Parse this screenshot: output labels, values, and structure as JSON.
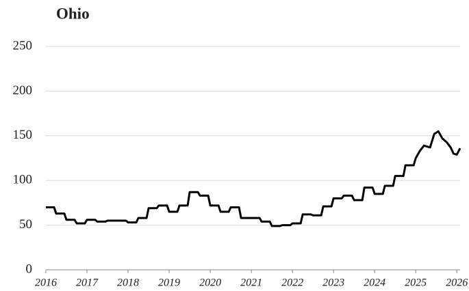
{
  "chart_data": {
    "type": "line",
    "title": "Ohio",
    "x": [
      2016,
      2016.2,
      2016.25,
      2016.45,
      2016.5,
      2016.7,
      2016.75,
      2016.95,
      2017,
      2017.2,
      2017.25,
      2017.45,
      2017.5,
      2017.95,
      2018,
      2018.2,
      2018.25,
      2018.45,
      2018.5,
      2018.7,
      2018.75,
      2018.95,
      2019,
      2019.2,
      2019.25,
      2019.45,
      2019.5,
      2019.7,
      2019.75,
      2019.95,
      2020,
      2020.2,
      2020.25,
      2020.45,
      2020.5,
      2020.7,
      2020.75,
      2021.2,
      2021.25,
      2021.45,
      2021.5,
      2021.7,
      2021.75,
      2021.95,
      2022,
      2022.2,
      2022.25,
      2022.45,
      2022.5,
      2022.7,
      2022.75,
      2022.95,
      2023,
      2023.2,
      2023.25,
      2023.45,
      2023.5,
      2023.7,
      2023.75,
      2023.95,
      2024,
      2024.2,
      2024.25,
      2024.45,
      2024.5,
      2024.7,
      2024.75,
      2024.95,
      2025,
      2025.1,
      2025.2,
      2025.35,
      2025.45,
      2025.55,
      2025.65,
      2025.75,
      2025.85,
      2025.92,
      2026,
      2026.08
    ],
    "series": [
      {
        "color": "#000000",
        "values": [
          70,
          70,
          63,
          63,
          56,
          56,
          52,
          52,
          56,
          56,
          54,
          54,
          55,
          55,
          53,
          53,
          58,
          58,
          69,
          69,
          72,
          72,
          65,
          65,
          72,
          72,
          87,
          87,
          83,
          83,
          72,
          72,
          65,
          65,
          70,
          70,
          58,
          58,
          54,
          54,
          49,
          49,
          50,
          50,
          52,
          52,
          62,
          62,
          61,
          61,
          71,
          71,
          80,
          80,
          83,
          83,
          78,
          78,
          92,
          92,
          85,
          85,
          94,
          94,
          105,
          105,
          117,
          117,
          125,
          133,
          139,
          137,
          152,
          155,
          147,
          143,
          137,
          130,
          129,
          136
        ]
      }
    ],
    "xlim": [
      2016,
      2026.08
    ],
    "xticks": [
      2016,
      2017,
      2018,
      2019,
      2020,
      2021,
      2022,
      2023,
      2024,
      2025,
      2026
    ],
    "ylim": [
      0,
      250
    ],
    "yticks": [
      0,
      50,
      100,
      150,
      200,
      250
    ],
    "grid": true
  }
}
